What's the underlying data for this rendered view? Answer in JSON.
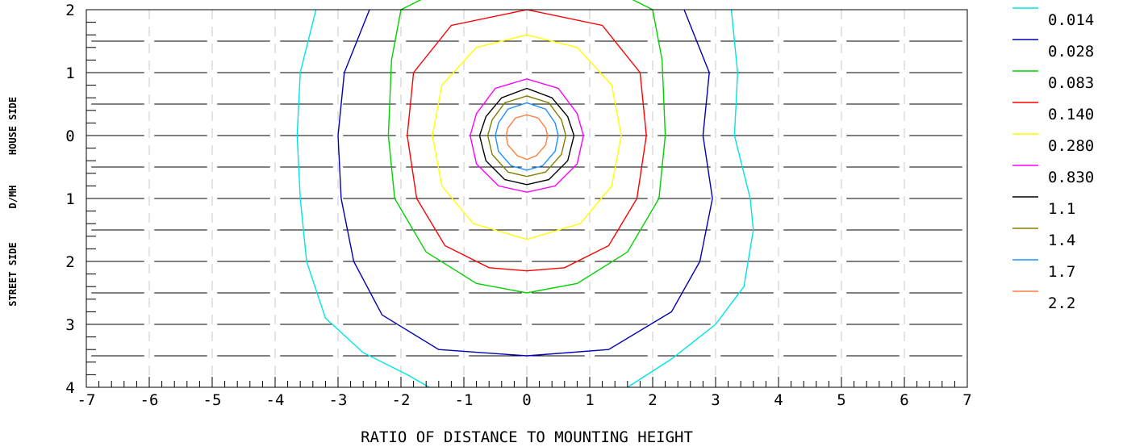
{
  "chart_data": {
    "type": "contour",
    "xlabel": "RATIO OF DISTANCE TO MOUNTING HEIGHT",
    "ylabel_parts": [
      "STREET SIDE",
      "D/MH",
      "HOUSE SIDE"
    ],
    "xlim": [
      -7,
      7
    ],
    "ylim": [
      -4,
      2
    ],
    "x_ticks": [
      -7,
      -6,
      -5,
      -4,
      -3,
      -2,
      -1,
      0,
      1,
      2,
      3,
      4,
      5,
      6,
      7
    ],
    "x_tick_labels": [
      "-7",
      "-6",
      "-5",
      "-4",
      "-3",
      "-2",
      "-1",
      "0",
      "1",
      "2",
      "3",
      "4",
      "5",
      "6",
      "7"
    ],
    "y_ticks": [
      2,
      1,
      0,
      -1,
      -2,
      -3,
      -4
    ],
    "y_tick_labels": [
      "2",
      "1",
      "0",
      "1",
      "2",
      "3",
      "4"
    ],
    "legend_position": "right",
    "series": [
      {
        "name": "0.014",
        "color": "#00e5e5",
        "closed": false,
        "points": [
          [
            -3.35,
            2.0
          ],
          [
            -3.6,
            1.0
          ],
          [
            -3.65,
            0.0
          ],
          [
            -3.6,
            -1.0
          ],
          [
            -3.5,
            -2.0
          ],
          [
            -3.2,
            -2.9
          ],
          [
            -2.6,
            -3.45
          ],
          [
            -1.9,
            -3.8
          ],
          [
            -1.55,
            -4.0
          ]
        ]
      },
      {
        "name": "0.014",
        "color": "#00e5e5",
        "closed": false,
        "points": [
          [
            3.25,
            2.0
          ],
          [
            3.35,
            1.0
          ],
          [
            3.3,
            0.0
          ],
          [
            3.55,
            -1.0
          ],
          [
            3.6,
            -1.5
          ],
          [
            3.45,
            -2.4
          ],
          [
            3.0,
            -3.0
          ],
          [
            2.3,
            -3.55
          ],
          [
            1.6,
            -4.0
          ]
        ]
      },
      {
        "name": "0.028",
        "color": "#0000b4",
        "closed": false,
        "points": [
          [
            -2.5,
            2.0
          ],
          [
            -2.9,
            1.0
          ],
          [
            -3.0,
            0.0
          ],
          [
            -2.95,
            -1.0
          ],
          [
            -2.75,
            -2.0
          ],
          [
            -2.3,
            -2.85
          ],
          [
            -1.4,
            -3.4
          ],
          [
            0.0,
            -3.5
          ],
          [
            1.3,
            -3.4
          ],
          [
            2.3,
            -2.8
          ],
          [
            2.75,
            -2.0
          ],
          [
            2.95,
            -1.0
          ],
          [
            2.8,
            0.0
          ],
          [
            2.9,
            1.0
          ],
          [
            2.5,
            2.0
          ]
        ]
      },
      {
        "name": "0.083",
        "color": "#00d200",
        "closed": true,
        "points": [
          [
            -2.0,
            2.0
          ],
          [
            -2.15,
            1.2
          ],
          [
            -2.2,
            0.0
          ],
          [
            -2.1,
            -1.0
          ],
          [
            -1.6,
            -1.85
          ],
          [
            -0.8,
            -2.35
          ],
          [
            0.0,
            -2.5
          ],
          [
            0.8,
            -2.35
          ],
          [
            1.6,
            -1.85
          ],
          [
            2.1,
            -1.0
          ],
          [
            2.2,
            0.0
          ],
          [
            2.15,
            1.2
          ],
          [
            2.0,
            2.0
          ],
          [
            1.2,
            2.4
          ],
          [
            0.0,
            2.6
          ],
          [
            -1.2,
            2.4
          ]
        ]
      },
      {
        "name": "0.140",
        "color": "#ff0000",
        "closed": true,
        "points": [
          [
            0.0,
            2.0
          ],
          [
            -1.2,
            1.75
          ],
          [
            -1.8,
            1.0
          ],
          [
            -1.9,
            0.0
          ],
          [
            -1.75,
            -1.0
          ],
          [
            -1.3,
            -1.75
          ],
          [
            -0.6,
            -2.1
          ],
          [
            0.0,
            -2.15
          ],
          [
            0.6,
            -2.1
          ],
          [
            1.3,
            -1.75
          ],
          [
            1.75,
            -1.0
          ],
          [
            1.9,
            0.0
          ],
          [
            1.8,
            1.0
          ],
          [
            1.2,
            1.75
          ]
        ]
      },
      {
        "name": "0.280",
        "color": "#ffff00",
        "closed": true,
        "points": [
          [
            0.0,
            1.6
          ],
          [
            -0.8,
            1.4
          ],
          [
            -1.35,
            0.8
          ],
          [
            -1.5,
            0.0
          ],
          [
            -1.35,
            -0.8
          ],
          [
            -0.85,
            -1.4
          ],
          [
            0.0,
            -1.65
          ],
          [
            0.85,
            -1.4
          ],
          [
            1.35,
            -0.8
          ],
          [
            1.5,
            0.0
          ],
          [
            1.35,
            0.8
          ],
          [
            0.8,
            1.4
          ]
        ]
      },
      {
        "name": "0.830",
        "color": "#ff00ff",
        "closed": true,
        "points": [
          [
            0.0,
            0.9
          ],
          [
            -0.5,
            0.75
          ],
          [
            -0.8,
            0.35
          ],
          [
            -0.9,
            0.0
          ],
          [
            -0.8,
            -0.45
          ],
          [
            -0.45,
            -0.8
          ],
          [
            0.0,
            -0.9
          ],
          [
            0.45,
            -0.8
          ],
          [
            0.8,
            -0.45
          ],
          [
            0.9,
            0.0
          ],
          [
            0.8,
            0.35
          ],
          [
            0.5,
            0.75
          ]
        ]
      },
      {
        "name": "1.1",
        "color": "#000000",
        "closed": true,
        "points": [
          [
            0.0,
            0.75
          ],
          [
            -0.4,
            0.6
          ],
          [
            -0.65,
            0.3
          ],
          [
            -0.75,
            0.0
          ],
          [
            -0.65,
            -0.4
          ],
          [
            -0.35,
            -0.7
          ],
          [
            0.0,
            -0.78
          ],
          [
            0.35,
            -0.7
          ],
          [
            0.65,
            -0.4
          ],
          [
            0.75,
            0.0
          ],
          [
            0.65,
            0.3
          ],
          [
            0.4,
            0.6
          ]
        ]
      },
      {
        "name": "1.4",
        "color": "#808000",
        "closed": true,
        "points": [
          [
            0.0,
            0.63
          ],
          [
            -0.35,
            0.52
          ],
          [
            -0.55,
            0.25
          ],
          [
            -0.62,
            0.0
          ],
          [
            -0.55,
            -0.3
          ],
          [
            -0.3,
            -0.58
          ],
          [
            0.0,
            -0.65
          ],
          [
            0.3,
            -0.58
          ],
          [
            0.55,
            -0.3
          ],
          [
            0.62,
            0.0
          ],
          [
            0.55,
            0.25
          ],
          [
            0.35,
            0.52
          ]
        ]
      },
      {
        "name": "1.7",
        "color": "#1e90ff",
        "closed": true,
        "points": [
          [
            0.0,
            0.52
          ],
          [
            -0.3,
            0.42
          ],
          [
            -0.45,
            0.2
          ],
          [
            -0.5,
            0.0
          ],
          [
            -0.45,
            -0.25
          ],
          [
            -0.25,
            -0.48
          ],
          [
            0.0,
            -0.55
          ],
          [
            0.25,
            -0.48
          ],
          [
            0.45,
            -0.25
          ],
          [
            0.5,
            0.0
          ],
          [
            0.45,
            0.2
          ],
          [
            0.3,
            0.42
          ]
        ]
      },
      {
        "name": "2.2",
        "color": "#ff8040",
        "closed": true,
        "points": [
          [
            0.0,
            0.33
          ],
          [
            -0.18,
            0.28
          ],
          [
            -0.3,
            0.12
          ],
          [
            -0.33,
            0.0
          ],
          [
            -0.3,
            -0.15
          ],
          [
            -0.15,
            -0.32
          ],
          [
            0.0,
            -0.38
          ],
          [
            0.15,
            -0.32
          ],
          [
            0.3,
            -0.15
          ],
          [
            0.33,
            0.0
          ],
          [
            0.3,
            0.12
          ],
          [
            0.18,
            0.28
          ]
        ]
      }
    ],
    "legend": [
      {
        "label": "0.014",
        "color": "#00e5e5"
      },
      {
        "label": "0.028",
        "color": "#0000b4"
      },
      {
        "label": "0.083",
        "color": "#00d200"
      },
      {
        "label": "0.140",
        "color": "#ff0000"
      },
      {
        "label": "0.280",
        "color": "#ffff00"
      },
      {
        "label": "0.830",
        "color": "#ff00ff"
      },
      {
        "label": "1.1",
        "color": "#000000"
      },
      {
        "label": "1.4",
        "color": "#808000"
      },
      {
        "label": "1.7",
        "color": "#1e90ff"
      },
      {
        "label": "2.2",
        "color": "#ff8040"
      }
    ]
  }
}
